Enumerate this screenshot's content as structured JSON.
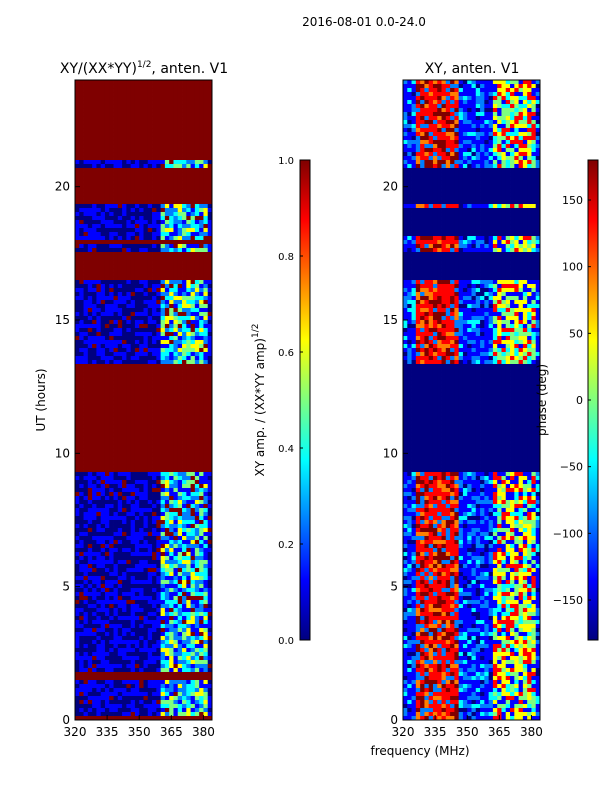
{
  "figure": {
    "suptitle": "2016-08-01 0.0-24.0",
    "shared_xlabel": "frequency (MHz)"
  },
  "colors": {
    "jet": [
      "#00007f",
      "#0000ff",
      "#007fff",
      "#00ffff",
      "#7fff7f",
      "#ffff00",
      "#ff7f00",
      "#ff0000",
      "#7f0000"
    ]
  },
  "chart_data": [
    {
      "type": "heatmap",
      "panel": "left",
      "title_base": "XY/(XX*YY)",
      "title_sup": "1/2",
      "title_suffix": ", anten. V1",
      "xlabel": "",
      "ylabel": "UT (hours)",
      "xlim": [
        320,
        384
      ],
      "ylim": [
        0,
        24
      ],
      "xticks": [
        320,
        335,
        350,
        365,
        380
      ],
      "yticks": [
        0,
        5,
        10,
        15,
        20
      ],
      "colorbar": {
        "label_base": "XY amp. / (XX*YY amp)",
        "label_sup": "1/2",
        "range": [
          0.0,
          1.0
        ],
        "ticks": [
          "0.0",
          "0.2",
          "0.4",
          "0.6",
          "0.8",
          "1.0"
        ],
        "tick_values": [
          0.0,
          0.2,
          0.4,
          0.6,
          0.8,
          1.0
        ]
      },
      "saturated_bands_hours": [
        [
          0,
          0.15
        ],
        [
          1.55,
          1.75
        ],
        [
          9.3,
          13.4
        ],
        [
          16.5,
          17.6
        ],
        [
          17.85,
          18.05
        ],
        [
          19.3,
          20.7
        ],
        [
          21.0,
          24.0
        ]
      ],
      "noisy_band_mhz": [
        361,
        381
      ]
    },
    {
      "type": "heatmap",
      "panel": "right",
      "title": "XY, anten. V1",
      "xlabel": "frequency (MHz)",
      "ylabel": "",
      "xlim": [
        320,
        384
      ],
      "ylim": [
        0,
        24
      ],
      "xticks": [
        320,
        335,
        350,
        365,
        380
      ],
      "yticks": [
        0,
        5,
        10,
        15,
        20
      ],
      "colorbar": {
        "label": "phase (deg)",
        "range": [
          -180,
          180
        ],
        "ticks": [
          "150",
          "100",
          "50",
          "0",
          "−50",
          "−100",
          "−150"
        ],
        "tick_values": [
          150,
          100,
          50,
          0,
          -50,
          -100,
          -150
        ]
      },
      "masked_bands_hours": [
        [
          9.3,
          13.4
        ],
        [
          16.5,
          17.6
        ],
        [
          18.1,
          19.2
        ],
        [
          19.3,
          20.7
        ]
      ],
      "hot_band_mhz": [
        327,
        345
      ],
      "warm_band_mhz": [
        363,
        382
      ]
    }
  ]
}
